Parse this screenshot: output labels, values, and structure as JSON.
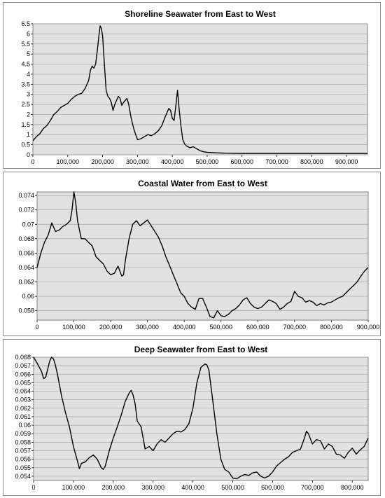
{
  "chart_data": [
    {
      "type": "line",
      "title": "Shoreline Seawater from East to West",
      "xlabel": "",
      "ylabel": "",
      "xlim": [
        0,
        960000
      ],
      "ylim": [
        0,
        6.5
      ],
      "xticks": [
        0,
        100000,
        200000,
        300000,
        400000,
        500000,
        600000,
        700000,
        800000,
        900000
      ],
      "xtick_labels": [
        "0",
        "100,000",
        "200,000",
        "300,000",
        "400,000",
        "500,000",
        "600,000",
        "700,000",
        "800,000",
        "900,000"
      ],
      "yticks": [
        0,
        0.5,
        1,
        1.5,
        2,
        2.5,
        3,
        3.5,
        4,
        4.5,
        5,
        5.5,
        6,
        6.5
      ],
      "ytick_labels": [
        "0",
        "0.5",
        "1",
        "1.5",
        "2",
        "2.5",
        "3",
        "3.5",
        "4",
        "4.5",
        "5",
        "5.5",
        "6",
        "6.5"
      ],
      "grid": true,
      "line_color": "#000000",
      "plot_bg": "#e1e1e1",
      "x": [
        0,
        10000,
        20000,
        30000,
        40000,
        50000,
        60000,
        70000,
        80000,
        90000,
        100000,
        110000,
        120000,
        130000,
        140000,
        150000,
        160000,
        165000,
        170000,
        175000,
        180000,
        185000,
        190000,
        193000,
        196000,
        200000,
        205000,
        210000,
        215000,
        220000,
        225000,
        230000,
        235000,
        240000,
        245000,
        250000,
        255000,
        260000,
        265000,
        270000,
        275000,
        280000,
        285000,
        290000,
        295000,
        300000,
        310000,
        320000,
        330000,
        340000,
        350000,
        360000,
        370000,
        380000,
        390000,
        395000,
        400000,
        405000,
        410000,
        415000,
        420000,
        425000,
        430000,
        435000,
        440000,
        445000,
        450000,
        460000,
        470000,
        480000,
        490000,
        500000,
        520000,
        550000,
        600000,
        700000,
        800000,
        900000,
        960000
      ],
      "y": [
        0.7,
        0.9,
        1.05,
        1.3,
        1.45,
        1.7,
        2.0,
        2.15,
        2.35,
        2.45,
        2.55,
        2.75,
        2.9,
        3.0,
        3.05,
        3.3,
        3.7,
        4.2,
        4.4,
        4.3,
        4.5,
        5.2,
        6.0,
        6.4,
        6.3,
        5.9,
        4.5,
        3.2,
        2.9,
        2.8,
        2.6,
        2.2,
        2.5,
        2.7,
        2.9,
        2.8,
        2.45,
        2.6,
        2.7,
        2.8,
        2.5,
        2.0,
        1.6,
        1.25,
        1.0,
        0.75,
        0.8,
        0.9,
        1.0,
        0.95,
        1.05,
        1.2,
        1.45,
        1.9,
        2.3,
        2.2,
        1.8,
        1.7,
        2.4,
        3.2,
        2.2,
        1.4,
        0.75,
        0.55,
        0.45,
        0.4,
        0.35,
        0.4,
        0.3,
        0.2,
        0.15,
        0.12,
        0.1,
        0.08,
        0.07,
        0.07,
        0.07,
        0.07,
        0.07
      ]
    },
    {
      "type": "line",
      "title": "Coastal Water from East to West",
      "xlabel": "",
      "ylabel": "",
      "xlim": [
        0,
        900000
      ],
      "ylim": [
        0.0567,
        0.0745
      ],
      "xticks": [
        0,
        100000,
        200000,
        300000,
        400000,
        500000,
        600000,
        700000,
        800000,
        900000
      ],
      "xtick_labels": [
        "0",
        "100,000",
        "200,000",
        "300,000",
        "400,000",
        "500,000",
        "600,000",
        "700,000",
        "800,000",
        "900,000"
      ],
      "yticks": [
        0.058,
        0.06,
        0.062,
        0.064,
        0.066,
        0.068,
        0.07,
        0.072,
        0.074
      ],
      "ytick_labels": [
        "0.058",
        "0.06",
        "0.062",
        "0.064",
        "0.066",
        "0.068",
        "0.07",
        "0.072",
        "0.074"
      ],
      "grid": true,
      "line_color": "#000000",
      "plot_bg": "#e1e1e1",
      "x": [
        0,
        10000,
        20000,
        30000,
        40000,
        50000,
        60000,
        70000,
        80000,
        90000,
        95000,
        100000,
        105000,
        110000,
        120000,
        130000,
        140000,
        150000,
        160000,
        170000,
        180000,
        190000,
        200000,
        210000,
        220000,
        230000,
        235000,
        240000,
        250000,
        260000,
        270000,
        280000,
        290000,
        300000,
        310000,
        320000,
        330000,
        340000,
        350000,
        360000,
        370000,
        380000,
        390000,
        400000,
        410000,
        420000,
        430000,
        440000,
        450000,
        460000,
        470000,
        480000,
        490000,
        500000,
        510000,
        520000,
        530000,
        540000,
        550000,
        560000,
        570000,
        580000,
        590000,
        600000,
        610000,
        620000,
        630000,
        640000,
        650000,
        660000,
        670000,
        680000,
        690000,
        700000,
        710000,
        720000,
        730000,
        740000,
        750000,
        760000,
        770000,
        780000,
        790000,
        800000,
        810000,
        820000,
        830000,
        840000,
        850000,
        860000,
        870000,
        880000,
        890000,
        900000
      ],
      "y": [
        0.064,
        0.066,
        0.0675,
        0.0685,
        0.0702,
        0.069,
        0.0692,
        0.0697,
        0.07,
        0.0705,
        0.072,
        0.0745,
        0.073,
        0.0705,
        0.068,
        0.068,
        0.0675,
        0.067,
        0.0655,
        0.065,
        0.0645,
        0.0635,
        0.063,
        0.0632,
        0.0642,
        0.0628,
        0.063,
        0.065,
        0.068,
        0.07,
        0.0705,
        0.0698,
        0.0702,
        0.0706,
        0.0698,
        0.069,
        0.0682,
        0.067,
        0.0655,
        0.0643,
        0.063,
        0.0618,
        0.0605,
        0.06,
        0.059,
        0.0585,
        0.0582,
        0.0597,
        0.0597,
        0.0585,
        0.0572,
        0.057,
        0.058,
        0.0573,
        0.0572,
        0.0575,
        0.058,
        0.0583,
        0.0588,
        0.0595,
        0.0598,
        0.059,
        0.0585,
        0.0583,
        0.0585,
        0.059,
        0.0595,
        0.0593,
        0.059,
        0.0582,
        0.0585,
        0.059,
        0.0593,
        0.0607,
        0.06,
        0.0598,
        0.0592,
        0.0594,
        0.0592,
        0.0587,
        0.059,
        0.0588,
        0.0591,
        0.0592,
        0.0595,
        0.0598,
        0.06,
        0.0605,
        0.061,
        0.0615,
        0.062,
        0.0628,
        0.0635,
        0.064
      ]
    },
    {
      "type": "line",
      "title": "Deep Seawater from East to West",
      "xlabel": "",
      "ylabel": "",
      "xlim": [
        0,
        840000
      ],
      "ylim": [
        0.0535,
        0.068
      ],
      "xticks": [
        0,
        100000,
        200000,
        300000,
        400000,
        500000,
        600000,
        700000,
        800000
      ],
      "xtick_labels": [
        "0",
        "100,000",
        "200,000",
        "300,000",
        "400,000",
        "500,000",
        "600,000",
        "700,000",
        "800,000"
      ],
      "yticks": [
        0.054,
        0.055,
        0.056,
        0.057,
        0.058,
        0.059,
        0.06,
        0.061,
        0.062,
        0.063,
        0.064,
        0.065,
        0.066,
        0.067,
        0.068
      ],
      "ytick_labels": [
        "0.054",
        "0.055",
        "0.056",
        "0.057",
        "0.058",
        "0.059",
        "0.06",
        "0.061",
        "0.062",
        "0.063",
        "0.064",
        "0.065",
        "0.066",
        "0.067",
        "0.068"
      ],
      "grid": true,
      "line_color": "#000000",
      "plot_bg": "#e1e1e1",
      "x": [
        0,
        10000,
        20000,
        25000,
        30000,
        35000,
        40000,
        45000,
        50000,
        55000,
        60000,
        70000,
        80000,
        90000,
        100000,
        110000,
        115000,
        120000,
        130000,
        140000,
        150000,
        160000,
        170000,
        175000,
        180000,
        190000,
        200000,
        210000,
        220000,
        230000,
        240000,
        245000,
        250000,
        255000,
        260000,
        270000,
        280000,
        290000,
        300000,
        310000,
        320000,
        330000,
        340000,
        350000,
        360000,
        370000,
        380000,
        390000,
        400000,
        410000,
        420000,
        430000,
        435000,
        440000,
        450000,
        460000,
        470000,
        480000,
        490000,
        500000,
        510000,
        520000,
        530000,
        540000,
        550000,
        560000,
        570000,
        580000,
        590000,
        600000,
        610000,
        620000,
        630000,
        640000,
        650000,
        660000,
        670000,
        680000,
        685000,
        690000,
        700000,
        710000,
        720000,
        730000,
        740000,
        750000,
        760000,
        770000,
        780000,
        790000,
        800000,
        810000,
        820000,
        830000,
        840000
      ],
      "y": [
        0.068,
        0.0672,
        0.0663,
        0.0655,
        0.0656,
        0.0665,
        0.0675,
        0.068,
        0.0678,
        0.067,
        0.066,
        0.0635,
        0.0615,
        0.0598,
        0.0575,
        0.0558,
        0.0549,
        0.0555,
        0.0557,
        0.0562,
        0.0565,
        0.056,
        0.055,
        0.0548,
        0.0552,
        0.057,
        0.0585,
        0.0598,
        0.0612,
        0.0628,
        0.0638,
        0.0641,
        0.0635,
        0.0625,
        0.0605,
        0.0598,
        0.0572,
        0.0575,
        0.057,
        0.0578,
        0.0583,
        0.058,
        0.0585,
        0.059,
        0.0593,
        0.0592,
        0.0595,
        0.0602,
        0.062,
        0.065,
        0.0668,
        0.0672,
        0.0671,
        0.0665,
        0.0628,
        0.059,
        0.056,
        0.0548,
        0.0545,
        0.0538,
        0.0537,
        0.054,
        0.0542,
        0.0541,
        0.0544,
        0.0545,
        0.054,
        0.0538,
        0.054,
        0.0545,
        0.0552,
        0.0556,
        0.056,
        0.0563,
        0.0568,
        0.057,
        0.0572,
        0.0585,
        0.0593,
        0.059,
        0.0578,
        0.0583,
        0.0582,
        0.0572,
        0.0578,
        0.0575,
        0.0566,
        0.0565,
        0.0561,
        0.0568,
        0.0573,
        0.0566,
        0.0571,
        0.0575,
        0.0585
      ]
    }
  ]
}
